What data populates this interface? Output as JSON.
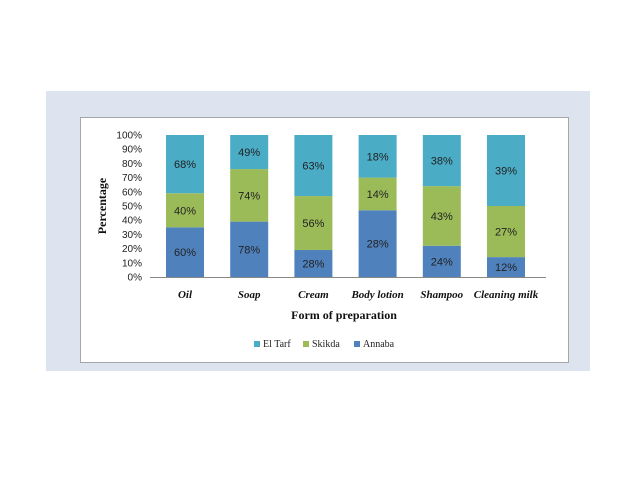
{
  "chart_data": {
    "type": "bar",
    "stacked": true,
    "categories": [
      "Oil",
      "Soap",
      "Cream",
      "Body lotion",
      "Shampoo",
      "Cleaning milk"
    ],
    "series": [
      {
        "name": "Annaba",
        "color": "#4f81bd",
        "values": [
          35,
          39,
          19,
          47,
          22,
          14
        ],
        "labels": [
          "60%",
          "78%",
          "28%",
          "28%",
          "24%",
          "12%"
        ]
      },
      {
        "name": "Skikda",
        "color": "#9bbb59",
        "values": [
          24,
          37,
          38,
          23,
          42,
          36
        ],
        "labels": [
          "40%",
          "74%",
          "56%",
          "14%",
          "43%",
          "27%"
        ]
      },
      {
        "name": "El Tarf",
        "color": "#4bacc6",
        "values": [
          41,
          24,
          43,
          30,
          36,
          50
        ],
        "labels": [
          "68%",
          "49%",
          "63%",
          "18%",
          "38%",
          "39%"
        ]
      }
    ],
    "xlabel": "Form of preparation",
    "ylabel": "Percentage",
    "ylim": [
      0,
      100
    ],
    "yticks": [
      "0%",
      "10%",
      "20%",
      "30%",
      "40%",
      "50%",
      "60%",
      "70%",
      "80%",
      "90%",
      "100%"
    ],
    "legend_order": [
      "El Tarf",
      "Skikda",
      "Annaba"
    ],
    "legend_position": "bottom",
    "grid": false
  }
}
